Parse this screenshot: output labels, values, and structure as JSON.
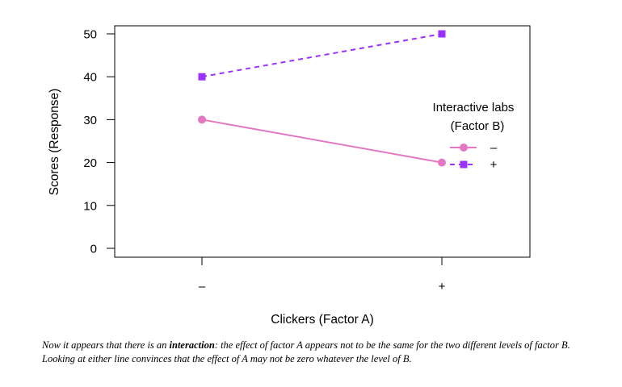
{
  "chart_data": {
    "type": "line",
    "categories": [
      "–",
      "+"
    ],
    "xlabel": "Clickers (Factor A)",
    "ylabel": "Scores (Response)",
    "ylim": [
      0,
      50
    ],
    "yticks": [
      0,
      10,
      20,
      30,
      40,
      50
    ],
    "grid": false,
    "legend": {
      "title_line1": "Interactive labs",
      "title_line2": "(Factor B)",
      "placement": "right"
    },
    "series": [
      {
        "name": "–",
        "values": [
          30,
          20
        ],
        "color": "#E377C2",
        "marker": "circle",
        "dash": "solid"
      },
      {
        "name": "+",
        "values": [
          40,
          50
        ],
        "color": "#9B30FF",
        "marker": "square",
        "dash": "dashed"
      }
    ]
  },
  "caption": {
    "part1": "Now it appears that there is an ",
    "emph": "interaction",
    "part2": ": the effect of factor A appears not to be the same for the two different levels of factor B. Looking at either line convinces that the effect of A may not be zero whatever the level of B."
  }
}
